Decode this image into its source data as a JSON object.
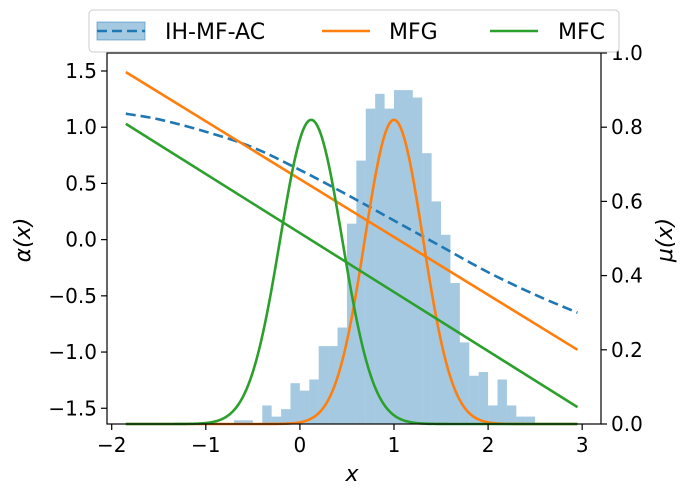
{
  "chart_data": {
    "type": "line",
    "title": "",
    "xlabel": "x",
    "ylabel_left": "α(x)",
    "ylabel_right": "μ(x)",
    "xlim": [
      -2.05,
      3.2
    ],
    "ylim_left": [
      -1.64,
      1.66
    ],
    "ylim_right": [
      0.0,
      1.0
    ],
    "xticks": [
      -2,
      -1,
      0,
      1,
      2,
      3
    ],
    "xtick_labels": [
      "−2",
      "−1",
      "0",
      "1",
      "2",
      "3"
    ],
    "yticks_left": [
      -1.5,
      -1.0,
      -0.5,
      0.0,
      0.5,
      1.0,
      1.5
    ],
    "ytick_labels_left": [
      "−1.5",
      "−1.0",
      "−0.5",
      "0.0",
      "0.5",
      "1.0",
      "1.5"
    ],
    "yticks_right": [
      0.0,
      0.2,
      0.4,
      0.6,
      0.8,
      1.0
    ],
    "ytick_labels_right": [
      "0.0",
      "0.2",
      "0.4",
      "0.6",
      "0.8",
      "1.0"
    ],
    "grid": false,
    "legend": {
      "placement": "top-center, above plot",
      "entries": [
        "IH-MF-AC",
        "MFG",
        "MFC"
      ]
    },
    "series": [
      {
        "name": "IH-MF-AC",
        "axis": "left",
        "style": "dashed",
        "color": "#1f77b4",
        "x": [
          -1.85,
          -1.5,
          -1.0,
          -0.5,
          0.0,
          0.5,
          1.0,
          1.5,
          2.0,
          2.5,
          2.95
        ],
        "y": [
          1.12,
          1.07,
          0.96,
          0.82,
          0.62,
          0.4,
          0.17,
          -0.06,
          -0.29,
          -0.49,
          -0.65
        ]
      },
      {
        "name": "MFG",
        "axis": "left",
        "style": "solid",
        "color": "#ff7f0e",
        "x": [
          -1.85,
          2.95
        ],
        "y": [
          1.49,
          -0.98
        ]
      },
      {
        "name": "MFG",
        "axis": "right",
        "style": "solid",
        "color": "#ff7f0e",
        "distribution": {
          "peak_x": 1.0,
          "peak": 0.82,
          "sd": 0.31
        }
      },
      {
        "name": "MFC",
        "axis": "left",
        "style": "solid",
        "color": "#2ca02c",
        "x": [
          -1.85,
          2.95
        ],
        "y": [
          1.03,
          -1.49
        ]
      },
      {
        "name": "MFC",
        "axis": "right",
        "style": "solid",
        "color": "#2ca02c",
        "distribution": {
          "peak_x": 0.12,
          "peak": 0.82,
          "sd": 0.33
        }
      }
    ],
    "histogram": {
      "name": "IH-MF-AC",
      "axis": "right",
      "color": "#1f77b4",
      "bin_edges": [
        -0.7,
        -0.6,
        -0.5,
        -0.4,
        -0.3,
        -0.2,
        -0.1,
        0.0,
        0.1,
        0.2,
        0.3,
        0.4,
        0.5,
        0.6,
        0.7,
        0.8,
        0.9,
        1.0,
        1.1,
        1.2,
        1.3,
        1.4,
        1.5,
        1.6,
        1.7,
        1.8,
        1.9,
        2.0,
        2.1,
        2.2,
        2.3,
        2.4,
        2.5,
        2.6,
        2.7,
        2.8,
        2.9
      ],
      "heights": [
        0.01,
        0.01,
        0.0,
        0.05,
        0.02,
        0.04,
        0.11,
        0.09,
        0.12,
        0.21,
        0.21,
        0.26,
        0.54,
        0.71,
        0.85,
        0.89,
        0.85,
        0.9,
        0.9,
        0.88,
        0.73,
        0.6,
        0.51,
        0.38,
        0.22,
        0.13,
        0.14,
        0.05,
        0.12,
        0.05,
        0.02,
        0.02,
        0.0,
        0.0,
        0.0,
        0.0
      ]
    }
  }
}
